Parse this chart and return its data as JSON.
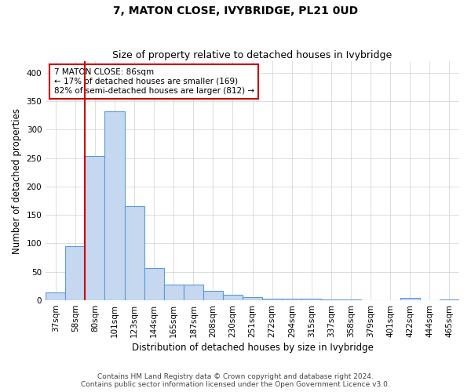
{
  "title": "7, MATON CLOSE, IVYBRIDGE, PL21 0UD",
  "subtitle": "Size of property relative to detached houses in Ivybridge",
  "xlabel": "Distribution of detached houses by size in Ivybridge",
  "ylabel": "Number of detached properties",
  "bar_labels": [
    "37sqm",
    "58sqm",
    "80sqm",
    "101sqm",
    "123sqm",
    "144sqm",
    "165sqm",
    "187sqm",
    "208sqm",
    "230sqm",
    "251sqm",
    "272sqm",
    "294sqm",
    "315sqm",
    "337sqm",
    "358sqm",
    "379sqm",
    "401sqm",
    "422sqm",
    "444sqm",
    "465sqm"
  ],
  "bar_values": [
    14,
    95,
    253,
    332,
    165,
    57,
    28,
    28,
    16,
    10,
    5,
    3,
    3,
    3,
    1,
    1,
    0,
    0,
    4,
    0,
    2
  ],
  "bar_color": "#c5d8f0",
  "bar_edgecolor": "#5b9bd5",
  "vline_color": "#cc0000",
  "annotation_text": "7 MATON CLOSE: 86sqm\n← 17% of detached houses are smaller (169)\n82% of semi-detached houses are larger (812) →",
  "annotation_box_color": "#ffffff",
  "annotation_box_edgecolor": "#cc0000",
  "ylim": [
    0,
    420
  ],
  "yticks": [
    0,
    50,
    100,
    150,
    200,
    250,
    300,
    350,
    400
  ],
  "grid_color": "#d0d0d0",
  "background_color": "#ffffff",
  "footer_line1": "Contains HM Land Registry data © Crown copyright and database right 2024.",
  "footer_line2": "Contains public sector information licensed under the Open Government Licence v3.0.",
  "title_fontsize": 10,
  "subtitle_fontsize": 9,
  "axis_label_fontsize": 8.5,
  "tick_fontsize": 7.5,
  "footer_fontsize": 6.5
}
